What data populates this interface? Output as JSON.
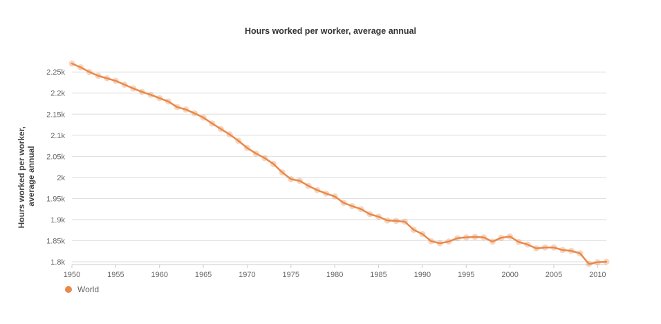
{
  "chart_data": {
    "type": "line",
    "title": "Hours worked per worker, average annual",
    "xlabel": "",
    "ylabel": "Hours worked per worker, average annual",
    "ylabel_lines": [
      "Hours worked per worker,",
      "average annual"
    ],
    "xlim": [
      1950,
      2011
    ],
    "ylim": [
      1800,
      2270
    ],
    "x_ticks": [
      1950,
      1955,
      1960,
      1965,
      1970,
      1975,
      1980,
      1985,
      1990,
      1995,
      2000,
      2005,
      2010
    ],
    "x_tick_labels": [
      "1950",
      "1955",
      "1960",
      "1965",
      "1970",
      "1975",
      "1980",
      "1985",
      "1990",
      "1995",
      "2000",
      "2005",
      "2010"
    ],
    "y_ticks": [
      1800,
      1850,
      1900,
      1950,
      2000,
      2050,
      2100,
      2150,
      2200,
      2250
    ],
    "y_tick_labels": [
      "1.8k",
      "1.85k",
      "1.9k",
      "1.95k",
      "2k",
      "2.05k",
      "2.1k",
      "2.15k",
      "2.2k",
      "2.25k"
    ],
    "grid": true,
    "legend_position": "bottom-left",
    "color": "#e8894a",
    "series": [
      {
        "name": "World",
        "x": [
          1950,
          1951,
          1952,
          1953,
          1954,
          1955,
          1956,
          1957,
          1958,
          1959,
          1960,
          1961,
          1962,
          1963,
          1964,
          1965,
          1966,
          1967,
          1968,
          1969,
          1970,
          1971,
          1972,
          1973,
          1974,
          1975,
          1976,
          1977,
          1978,
          1979,
          1980,
          1981,
          1982,
          1983,
          1984,
          1985,
          1986,
          1987,
          1988,
          1989,
          1990,
          1991,
          1992,
          1993,
          1994,
          1995,
          1996,
          1997,
          1998,
          1999,
          2000,
          2001,
          2002,
          2003,
          2004,
          2005,
          2006,
          2007,
          2008,
          2009,
          2010,
          2011
        ],
        "values": [
          2270,
          2261,
          2250,
          2241,
          2235,
          2229,
          2220,
          2211,
          2203,
          2196,
          2188,
          2180,
          2167,
          2161,
          2152,
          2142,
          2128,
          2115,
          2102,
          2087,
          2070,
          2057,
          2046,
          2032,
          2012,
          1996,
          1992,
          1980,
          1970,
          1962,
          1955,
          1940,
          1932,
          1925,
          1913,
          1907,
          1898,
          1897,
          1895,
          1876,
          1866,
          1849,
          1844,
          1848,
          1856,
          1858,
          1859,
          1858,
          1848,
          1857,
          1860,
          1847,
          1841,
          1832,
          1834,
          1834,
          1828,
          1826,
          1820,
          1795,
          1799,
          1800
        ]
      }
    ]
  }
}
